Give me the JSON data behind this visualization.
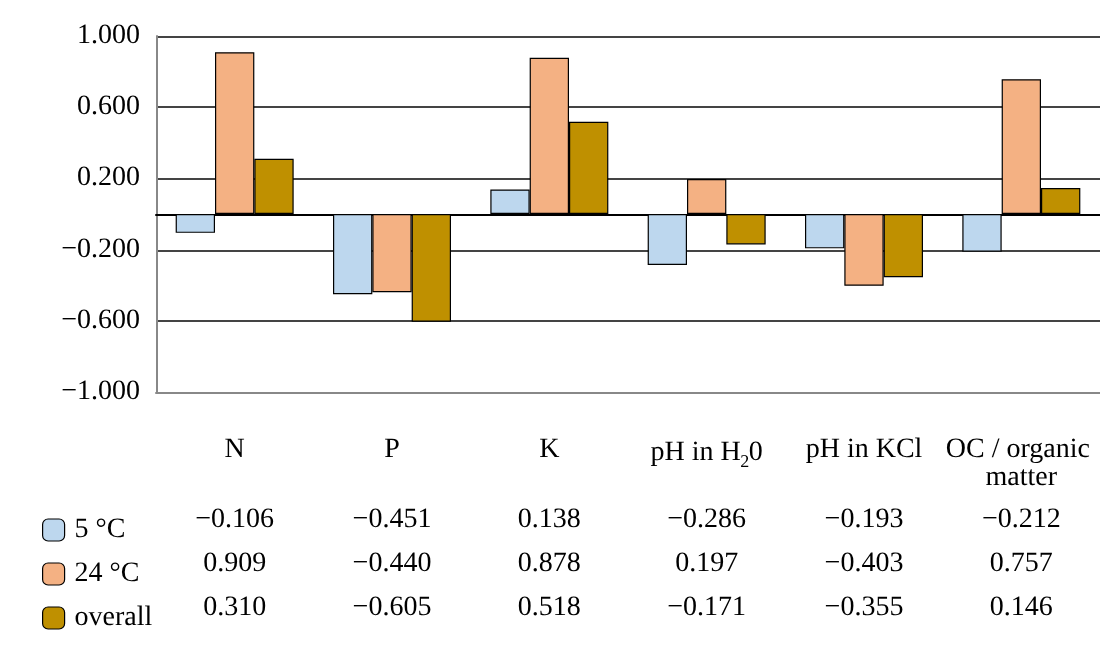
{
  "chart_data": {
    "type": "bar",
    "categories": [
      "N",
      "P",
      "K",
      "pH in H$_{2}$0",
      "pH in KCl",
      "OC / organic matter"
    ],
    "series": [
      {
        "name": "5 °C",
        "color": "#bdd7ee",
        "values": [
          -0.106,
          -0.451,
          0.138,
          -0.286,
          -0.193,
          -0.212
        ],
        "value_labels": [
          "−0.106",
          "−0.451",
          "0.138",
          "−0.286",
          "−0.193",
          "−0.212"
        ]
      },
      {
        "name": "24 °C",
        "color": "#f4b183",
        "values": [
          0.909,
          -0.44,
          0.878,
          0.197,
          -0.403,
          0.757
        ],
        "value_labels": [
          "0.909",
          "−0.440",
          "0.878",
          "0.197",
          "−0.403",
          "0.757"
        ]
      },
      {
        "name": "overall",
        "color": "#bf9000",
        "values": [
          0.31,
          -0.605,
          0.518,
          -0.171,
          -0.355,
          0.146
        ],
        "value_labels": [
          "0.310",
          "−0.605",
          "0.518",
          "−0.171",
          "−0.355",
          "0.146"
        ]
      }
    ],
    "ylim": [
      -1,
      1
    ],
    "yticks": [
      {
        "value": -1,
        "label": "−1.000"
      },
      {
        "value": -0.6,
        "label": "−0.600"
      },
      {
        "value": -0.2,
        "label": "−0.200"
      },
      {
        "value": 0.2,
        "label": "0.200"
      },
      {
        "value": 0.6,
        "label": "0.600"
      },
      {
        "value": 1,
        "label": "1.000"
      }
    ],
    "grid": "y",
    "legend": "bottom left"
  }
}
